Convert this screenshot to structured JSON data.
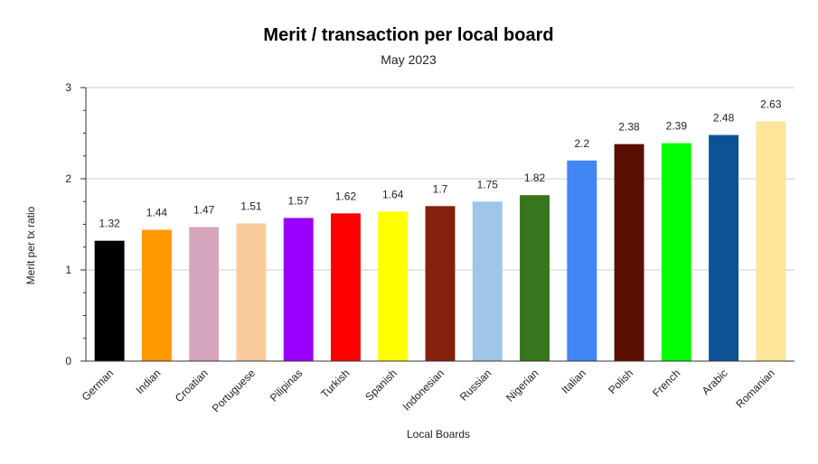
{
  "chart_data": {
    "type": "bar",
    "title": "Merit / transaction per local board",
    "subtitle": "May 2023",
    "xlabel": "Local Boards",
    "ylabel": "Merit per tx ratio",
    "ylim": [
      0,
      3
    ],
    "yticks": [
      0,
      1,
      2,
      3
    ],
    "grid": true,
    "categories": [
      "German",
      "Indian",
      "Croatian",
      "Portuguese",
      "Pilipinas",
      "Turkish",
      "Spanish",
      "Indonesian",
      "Russian",
      "Nigerian",
      "Italian",
      "Polish",
      "French",
      "Arabic",
      "Romanian"
    ],
    "values": [
      1.32,
      1.44,
      1.47,
      1.51,
      1.57,
      1.62,
      1.64,
      1.7,
      1.75,
      1.82,
      2.2,
      2.38,
      2.39,
      2.48,
      2.63
    ],
    "value_labels": [
      "1.32",
      "1.44",
      "1.47",
      "1.51",
      "1.57",
      "1.62",
      "1.64",
      "1.7",
      "1.75",
      "1.82",
      "2.2",
      "2.38",
      "2.39",
      "2.48",
      "2.63"
    ],
    "colors": [
      "#000000",
      "#ff9900",
      "#d5a6bd",
      "#f9cb9c",
      "#9900ff",
      "#ff0000",
      "#ffff00",
      "#85200c",
      "#9fc5e8",
      "#38761d",
      "#4285f4",
      "#5b0f00",
      "#00ff00",
      "#0b5394",
      "#ffe599"
    ]
  }
}
